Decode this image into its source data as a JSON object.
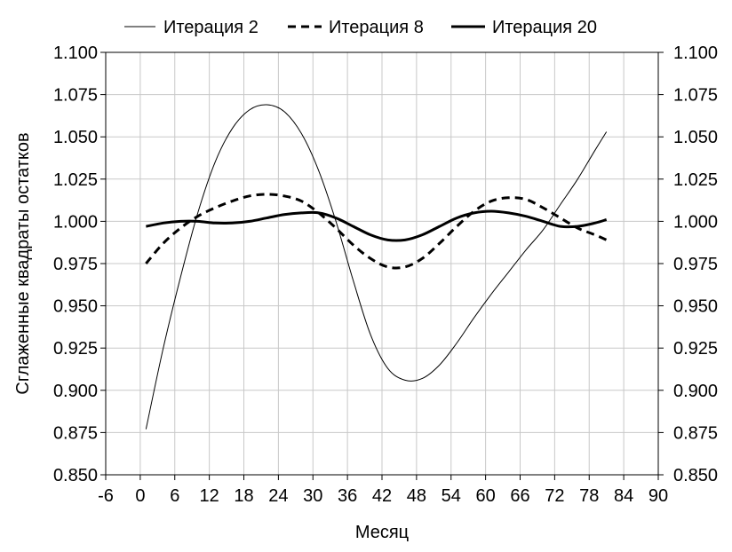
{
  "chart_data": {
    "type": "line",
    "xlabel": "Месяц",
    "ylabel": "Сглаженные квадраты остатков",
    "xlim": [
      -6,
      90
    ],
    "ylim": [
      0.85,
      1.1
    ],
    "x_ticks": [
      "-6",
      "0",
      "6",
      "12",
      "18",
      "24",
      "30",
      "36",
      "42",
      "48",
      "54",
      "60",
      "66",
      "72",
      "78",
      "84",
      "90"
    ],
    "y_ticks": [
      "0.850",
      "0.875",
      "0.900",
      "0.925",
      "0.950",
      "0.975",
      "1.000",
      "1.025",
      "1.050",
      "1.075",
      "1.100"
    ],
    "grid": true,
    "legend": "top",
    "series": [
      {
        "name": "Итерация 2",
        "style": "thin",
        "x": [
          1,
          4,
          7,
          10,
          13,
          16,
          19,
          22,
          25,
          28,
          31,
          34,
          37,
          40,
          43,
          46,
          49,
          52,
          55,
          58,
          61,
          64,
          67,
          70,
          73,
          76,
          79,
          81
        ],
        "values": [
          0.877,
          0.925,
          0.967,
          1.005,
          1.035,
          1.055,
          1.066,
          1.069,
          1.065,
          1.052,
          1.03,
          1.0,
          0.965,
          0.933,
          0.913,
          0.906,
          0.907,
          0.915,
          0.928,
          0.943,
          0.957,
          0.97,
          0.983,
          0.995,
          1.01,
          1.025,
          1.042,
          1.053
        ]
      },
      {
        "name": "Итерация 8",
        "style": "dashed",
        "x": [
          1,
          4,
          7,
          10,
          13,
          16,
          19,
          22,
          25,
          28,
          31,
          34,
          37,
          40,
          43,
          46,
          49,
          52,
          55,
          58,
          61,
          64,
          67,
          70,
          73,
          76,
          79,
          81
        ],
        "values": [
          0.975,
          0.987,
          0.996,
          1.003,
          1.008,
          1.012,
          1.015,
          1.016,
          1.015,
          1.012,
          1.005,
          0.996,
          0.986,
          0.978,
          0.973,
          0.973,
          0.978,
          0.987,
          0.997,
          1.006,
          1.012,
          1.014,
          1.013,
          1.008,
          1.002,
          0.996,
          0.992,
          0.989
        ]
      },
      {
        "name": "Итерация 20",
        "style": "thick",
        "x": [
          1,
          4,
          7,
          10,
          13,
          16,
          19,
          22,
          25,
          28,
          31,
          34,
          37,
          40,
          43,
          46,
          49,
          52,
          55,
          58,
          61,
          64,
          67,
          70,
          73,
          76,
          79,
          81
        ],
        "values": [
          0.997,
          0.999,
          1.0,
          1.0,
          0.999,
          0.999,
          1.0,
          1.002,
          1.004,
          1.005,
          1.005,
          1.002,
          0.997,
          0.992,
          0.989,
          0.989,
          0.992,
          0.997,
          1.002,
          1.005,
          1.006,
          1.005,
          1.003,
          1.0,
          0.997,
          0.997,
          0.999,
          1.001
        ]
      }
    ]
  }
}
